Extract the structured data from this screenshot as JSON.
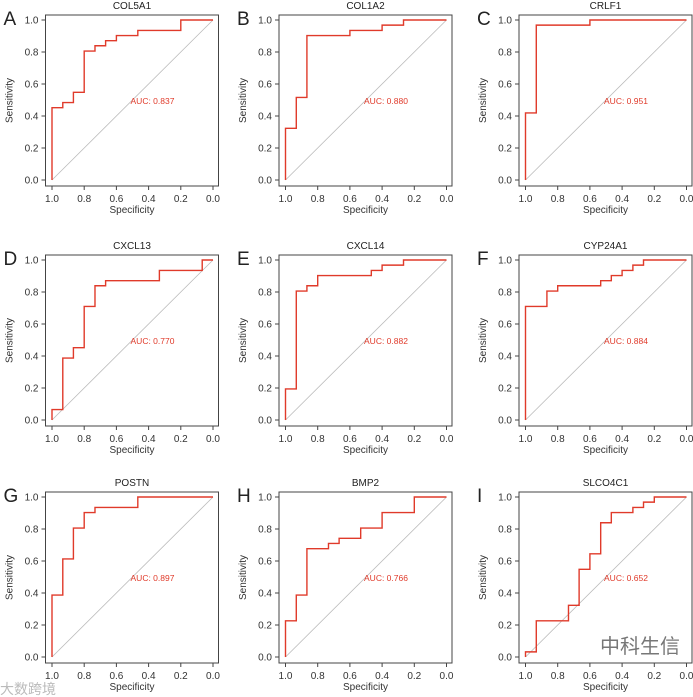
{
  "chart_data": [
    {
      "panel": "A",
      "type": "line",
      "title": "COL5A1",
      "xlabel": "Specificity",
      "ylabel": "Sensitivity",
      "xlim": [
        1.0,
        0.0
      ],
      "ylim": [
        0.0,
        1.0
      ],
      "auc_label": "AUC: 0.837",
      "points": [
        [
          1,
          0
        ],
        [
          1,
          0.452
        ],
        [
          0.933,
          0.452
        ],
        [
          0.933,
          0.484
        ],
        [
          0.867,
          0.484
        ],
        [
          0.867,
          0.548
        ],
        [
          0.8,
          0.548
        ],
        [
          0.8,
          0.806
        ],
        [
          0.733,
          0.806
        ],
        [
          0.733,
          0.839
        ],
        [
          0.667,
          0.839
        ],
        [
          0.667,
          0.871
        ],
        [
          0.6,
          0.871
        ],
        [
          0.6,
          0.903
        ],
        [
          0.467,
          0.903
        ],
        [
          0.467,
          0.935
        ],
        [
          0.2,
          0.935
        ],
        [
          0.2,
          1
        ],
        [
          0,
          1
        ]
      ]
    },
    {
      "panel": "B",
      "type": "line",
      "title": "COL1A2",
      "xlabel": "Specificity",
      "ylabel": "Sensitivity",
      "xlim": [
        1.0,
        0.0
      ],
      "ylim": [
        0.0,
        1.0
      ],
      "auc_label": "AUC: 0.880",
      "points": [
        [
          1,
          0
        ],
        [
          1,
          0.323
        ],
        [
          0.933,
          0.323
        ],
        [
          0.933,
          0.516
        ],
        [
          0.867,
          0.516
        ],
        [
          0.867,
          0.903
        ],
        [
          0.6,
          0.903
        ],
        [
          0.6,
          0.935
        ],
        [
          0.4,
          0.935
        ],
        [
          0.4,
          0.968
        ],
        [
          0.267,
          0.968
        ],
        [
          0.267,
          1
        ],
        [
          0,
          1
        ]
      ]
    },
    {
      "panel": "C",
      "type": "line",
      "title": "CRLF1",
      "xlabel": "Specificity",
      "ylabel": "Sensitivity",
      "xlim": [
        1.0,
        0.0
      ],
      "ylim": [
        0.0,
        1.0
      ],
      "auc_label": "AUC: 0.951",
      "points": [
        [
          1,
          0
        ],
        [
          1,
          0.419
        ],
        [
          0.933,
          0.419
        ],
        [
          0.933,
          0.968
        ],
        [
          0.6,
          0.968
        ],
        [
          0.6,
          1
        ],
        [
          0,
          1
        ]
      ]
    },
    {
      "panel": "D",
      "type": "line",
      "title": "CXCL13",
      "xlabel": "Specificity",
      "ylabel": "Sensitivity",
      "xlim": [
        1.0,
        0.0
      ],
      "ylim": [
        0.0,
        1.0
      ],
      "auc_label": "AUC: 0.770",
      "points": [
        [
          1,
          0
        ],
        [
          1,
          0.065
        ],
        [
          0.933,
          0.065
        ],
        [
          0.933,
          0.387
        ],
        [
          0.867,
          0.387
        ],
        [
          0.867,
          0.452
        ],
        [
          0.8,
          0.452
        ],
        [
          0.8,
          0.71
        ],
        [
          0.733,
          0.71
        ],
        [
          0.733,
          0.839
        ],
        [
          0.667,
          0.839
        ],
        [
          0.667,
          0.871
        ],
        [
          0.333,
          0.871
        ],
        [
          0.333,
          0.935
        ],
        [
          0.067,
          0.935
        ],
        [
          0.067,
          1
        ],
        [
          0,
          1
        ]
      ]
    },
    {
      "panel": "E",
      "type": "line",
      "title": "CXCL14",
      "xlabel": "Specificity",
      "ylabel": "Sensitivity",
      "xlim": [
        1.0,
        0.0
      ],
      "ylim": [
        0.0,
        1.0
      ],
      "auc_label": "AUC: 0.882",
      "points": [
        [
          1,
          0
        ],
        [
          1,
          0.194
        ],
        [
          0.933,
          0.194
        ],
        [
          0.933,
          0.806
        ],
        [
          0.867,
          0.806
        ],
        [
          0.867,
          0.839
        ],
        [
          0.8,
          0.839
        ],
        [
          0.8,
          0.903
        ],
        [
          0.467,
          0.903
        ],
        [
          0.467,
          0.935
        ],
        [
          0.4,
          0.935
        ],
        [
          0.4,
          0.968
        ],
        [
          0.267,
          0.968
        ],
        [
          0.267,
          1
        ],
        [
          0,
          1
        ]
      ]
    },
    {
      "panel": "F",
      "type": "line",
      "title": "CYP24A1",
      "xlabel": "Specificity",
      "ylabel": "Sensitivity",
      "xlim": [
        1.0,
        0.0
      ],
      "ylim": [
        0.0,
        1.0
      ],
      "auc_label": "AUC: 0.884",
      "points": [
        [
          1,
          0
        ],
        [
          1,
          0.71
        ],
        [
          0.867,
          0.71
        ],
        [
          0.867,
          0.806
        ],
        [
          0.8,
          0.806
        ],
        [
          0.8,
          0.839
        ],
        [
          0.533,
          0.839
        ],
        [
          0.533,
          0.871
        ],
        [
          0.467,
          0.871
        ],
        [
          0.467,
          0.903
        ],
        [
          0.4,
          0.903
        ],
        [
          0.4,
          0.935
        ],
        [
          0.333,
          0.935
        ],
        [
          0.333,
          0.968
        ],
        [
          0.267,
          0.968
        ],
        [
          0.267,
          1
        ],
        [
          0,
          1
        ]
      ]
    },
    {
      "panel": "G",
      "type": "line",
      "title": "POSTN",
      "xlabel": "Specificity",
      "ylabel": "Sensitivity",
      "xlim": [
        1.0,
        0.0
      ],
      "ylim": [
        0.0,
        1.0
      ],
      "auc_label": "AUC: 0.897",
      "points": [
        [
          1,
          0
        ],
        [
          1,
          0.387
        ],
        [
          0.933,
          0.387
        ],
        [
          0.933,
          0.613
        ],
        [
          0.867,
          0.613
        ],
        [
          0.867,
          0.806
        ],
        [
          0.8,
          0.806
        ],
        [
          0.8,
          0.903
        ],
        [
          0.733,
          0.903
        ],
        [
          0.733,
          0.935
        ],
        [
          0.467,
          0.935
        ],
        [
          0.467,
          1
        ],
        [
          0,
          1
        ]
      ]
    },
    {
      "panel": "H",
      "type": "line",
      "title": "BMP2",
      "xlabel": "Specificity",
      "ylabel": "Sensitivity",
      "xlim": [
        1.0,
        0.0
      ],
      "ylim": [
        0.0,
        1.0
      ],
      "auc_label": "AUC: 0.766",
      "points": [
        [
          1,
          0
        ],
        [
          1,
          0.226
        ],
        [
          0.933,
          0.226
        ],
        [
          0.933,
          0.387
        ],
        [
          0.867,
          0.387
        ],
        [
          0.867,
          0.677
        ],
        [
          0.733,
          0.677
        ],
        [
          0.733,
          0.71
        ],
        [
          0.667,
          0.71
        ],
        [
          0.667,
          0.742
        ],
        [
          0.533,
          0.742
        ],
        [
          0.533,
          0.806
        ],
        [
          0.4,
          0.806
        ],
        [
          0.4,
          0.903
        ],
        [
          0.2,
          0.903
        ],
        [
          0.2,
          1
        ],
        [
          0,
          1
        ]
      ]
    },
    {
      "panel": "I",
      "type": "line",
      "title": "SLCO4C1",
      "xlabel": "Specificity",
      "ylabel": "Sensitivity",
      "xlim": [
        1.0,
        0.0
      ],
      "ylim": [
        0.0,
        1.0
      ],
      "auc_label": "AUC: 0.652",
      "points": [
        [
          1,
          0
        ],
        [
          1,
          0.032
        ],
        [
          0.933,
          0.032
        ],
        [
          0.933,
          0.226
        ],
        [
          0.733,
          0.226
        ],
        [
          0.733,
          0.323
        ],
        [
          0.667,
          0.323
        ],
        [
          0.667,
          0.548
        ],
        [
          0.6,
          0.548
        ],
        [
          0.6,
          0.645
        ],
        [
          0.533,
          0.645
        ],
        [
          0.533,
          0.839
        ],
        [
          0.467,
          0.839
        ],
        [
          0.467,
          0.903
        ],
        [
          0.333,
          0.903
        ],
        [
          0.333,
          0.935
        ],
        [
          0.267,
          0.935
        ],
        [
          0.267,
          0.968
        ],
        [
          0.2,
          0.968
        ],
        [
          0.2,
          1
        ],
        [
          0,
          1
        ]
      ]
    }
  ],
  "ticks": [
    "1.0",
    "0.8",
    "0.6",
    "0.4",
    "0.2",
    "0.0"
  ],
  "colors": {
    "curve": "#e03a2a",
    "auc": "#e03a2a",
    "diagonal": "#bbbbbb",
    "axis": "#333333"
  },
  "watermarks": {
    "left": "大数跨境",
    "right": "中科生信"
  }
}
